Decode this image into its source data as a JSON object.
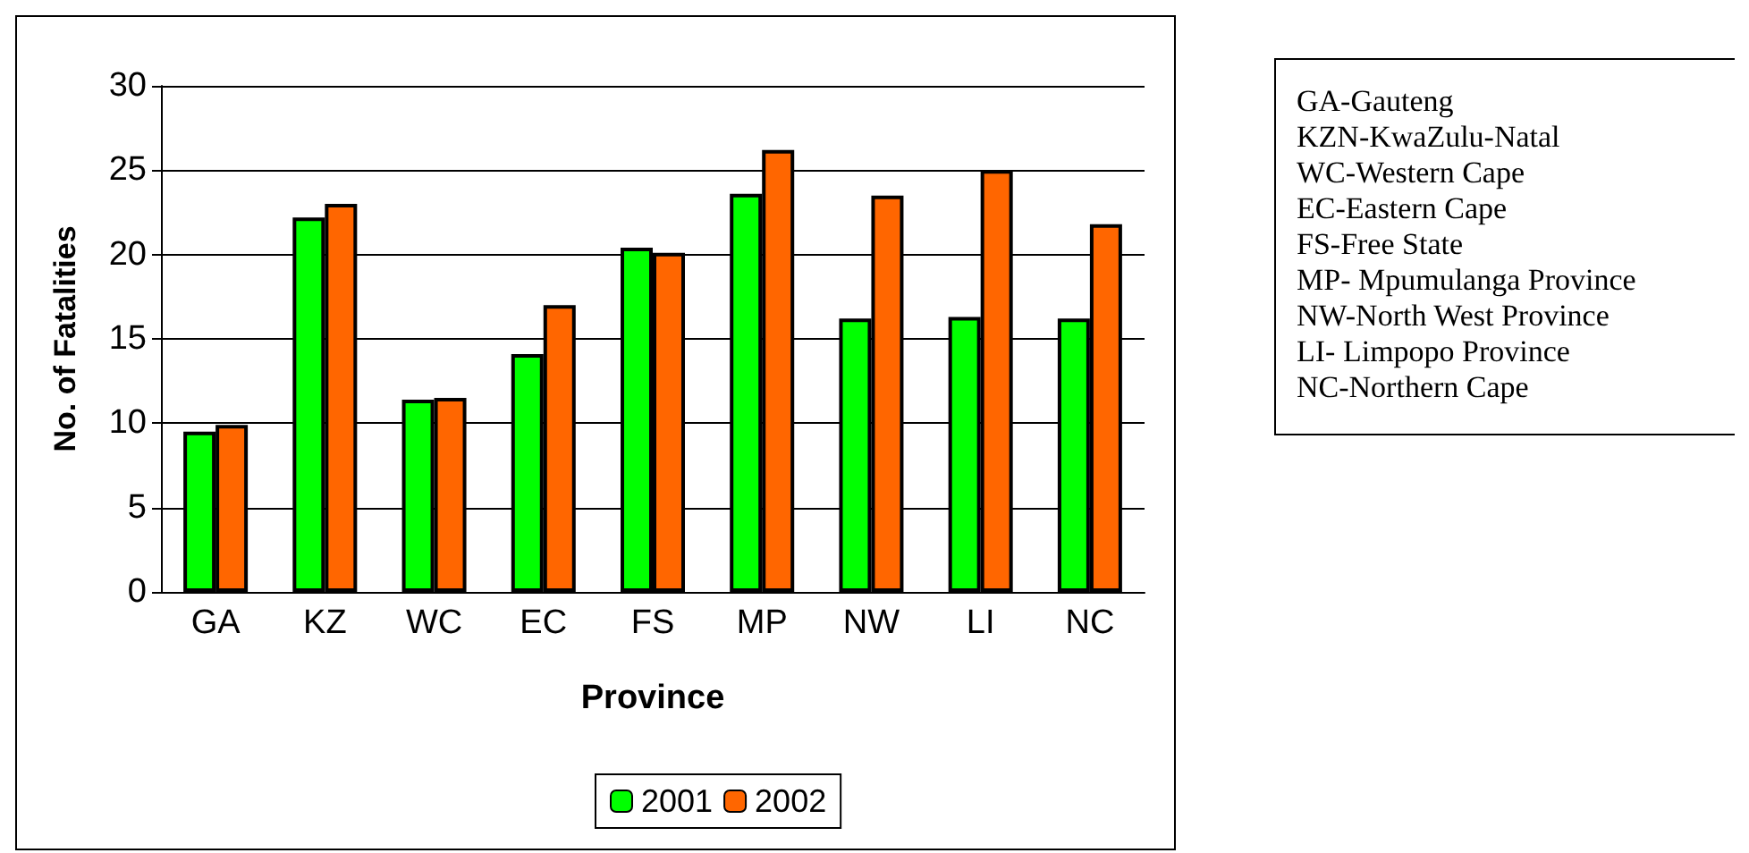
{
  "chart_data": {
    "type": "bar",
    "xlabel": "Province",
    "ylabel": "No. of Fatalities",
    "categories": [
      "GA",
      "KZ",
      "WC",
      "EC",
      "FS",
      "MP",
      "NW",
      "LI",
      "NC"
    ],
    "series": [
      {
        "name": "2001",
        "color": "#00ff00",
        "values": [
          9.5,
          22.2,
          11.4,
          14.1,
          20.4,
          23.6,
          16.2,
          16.3,
          16.2
        ]
      },
      {
        "name": "2002",
        "color": "#ff6600",
        "values": [
          9.9,
          23.0,
          11.5,
          17.0,
          20.1,
          26.2,
          23.5,
          25.0,
          21.8
        ]
      }
    ],
    "ylim": [
      0,
      30
    ],
    "yticks": [
      0,
      5,
      10,
      15,
      20,
      25,
      30
    ],
    "grid": "y",
    "legend": "bottom",
    "annotations": [
      "GA-Gauteng",
      "KZN-KwaZulu-Natal",
      "WC-Western Cape",
      "EC-Eastern Cape",
      "FS-Free State",
      "MP- Mpumulanga Province",
      "NW-North West Province",
      "LI- Limpopo Province",
      "NC-Northern Cape"
    ]
  }
}
